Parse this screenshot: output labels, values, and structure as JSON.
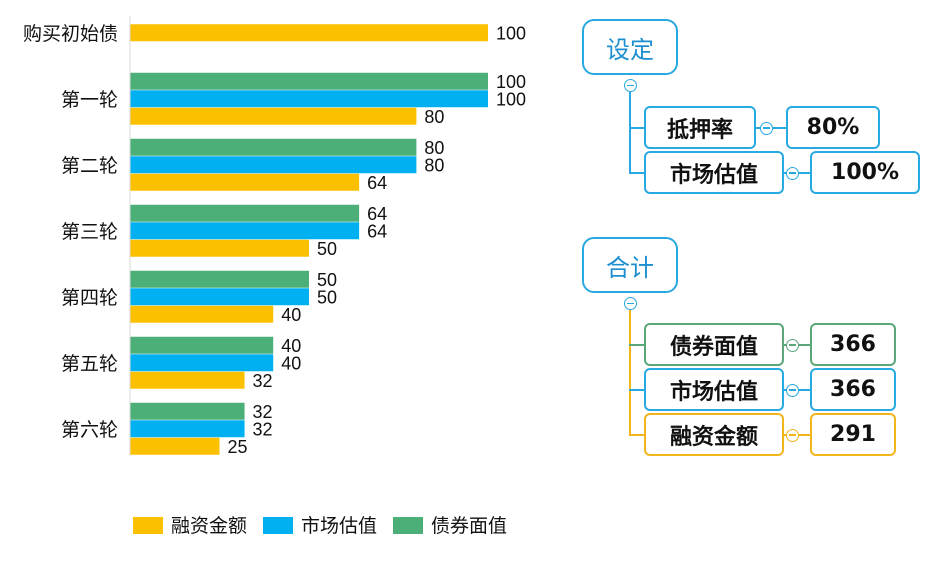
{
  "colors": {
    "financing": "#fbc000",
    "market": "#00b0f0",
    "face": "#4caf78",
    "mindmap_blue": "#29a9e1",
    "mindmap_green": "#5aa77a",
    "mindmap_gold": "#f3b51c"
  },
  "chart_data": {
    "type": "bar",
    "orientation": "horizontal",
    "categories": [
      "购买初始债",
      "第一轮",
      "第二轮",
      "第三轮",
      "第四轮",
      "第五轮",
      "第六轮"
    ],
    "series": [
      {
        "name": "债券面值",
        "values": [
          null,
          100,
          80,
          64,
          50,
          40,
          32
        ]
      },
      {
        "name": "市场估值",
        "values": [
          null,
          100,
          80,
          64,
          50,
          40,
          32
        ]
      },
      {
        "name": "融资金额",
        "values": [
          100,
          80,
          64,
          50,
          40,
          32,
          25
        ]
      }
    ],
    "legend": [
      "融资金额",
      "市场估值",
      "债券面值"
    ],
    "legend_position": "bottom",
    "xlim": [
      0,
      100
    ],
    "grid": false,
    "title": "",
    "xlabel": "",
    "ylabel": ""
  },
  "settings": {
    "title": "设定",
    "items": [
      {
        "label": "抵押率",
        "value": "80%"
      },
      {
        "label": "市场估值",
        "value": "100%"
      }
    ]
  },
  "totals": {
    "title": "合计",
    "items": [
      {
        "label": "债券面值",
        "value": "366"
      },
      {
        "label": "市场估值",
        "value": "366"
      },
      {
        "label": "融资金额",
        "value": "291"
      }
    ]
  }
}
